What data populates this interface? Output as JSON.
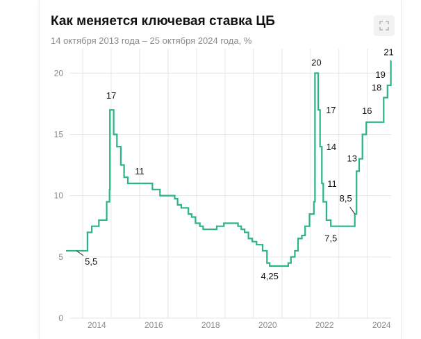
{
  "header": {
    "title": "Как меняется ключевая ставка ЦБ",
    "subtitle": "14 октября 2013 года – 25 октября 2024 года, %",
    "expand_icon": "expand-icon"
  },
  "colors": {
    "line": "#2bb584",
    "grid": "#e6e6e6",
    "text": "#111111",
    "muted": "#8a8a8a"
  },
  "chart_data": {
    "type": "line",
    "title": "Как меняется ключевая ставка ЦБ",
    "subtitle": "14 октября 2013 года – 25 октября 2024 года, %",
    "xlabel": "",
    "ylabel": "",
    "xlim": [
      "2013-06-01",
      "2024-11-01"
    ],
    "ylim": [
      0,
      22
    ],
    "yticks": [
      0,
      5,
      10,
      15,
      20
    ],
    "xticks": [
      "2014",
      "2016",
      "2018",
      "2020",
      "2022",
      "2024"
    ],
    "grid": true,
    "step": true,
    "series": [
      {
        "points": [
          [
            "2013-06-01",
            5.5
          ],
          [
            "2014-03-03",
            7.0
          ],
          [
            "2014-04-28",
            7.5
          ],
          [
            "2014-07-28",
            8.0
          ],
          [
            "2014-11-05",
            9.5
          ],
          [
            "2014-12-12",
            10.5
          ],
          [
            "2014-12-16",
            17.0
          ],
          [
            "2015-02-02",
            15.0
          ],
          [
            "2015-03-16",
            14.0
          ],
          [
            "2015-05-05",
            12.5
          ],
          [
            "2015-06-16",
            11.5
          ],
          [
            "2015-08-03",
            11.0
          ],
          [
            "2016-06-14",
            10.5
          ],
          [
            "2016-09-19",
            10.0
          ],
          [
            "2017-03-27",
            9.75
          ],
          [
            "2017-05-02",
            9.25
          ],
          [
            "2017-06-19",
            9.0
          ],
          [
            "2017-09-18",
            8.5
          ],
          [
            "2017-10-30",
            8.25
          ],
          [
            "2017-12-18",
            7.75
          ],
          [
            "2018-02-12",
            7.5
          ],
          [
            "2018-03-26",
            7.25
          ],
          [
            "2018-09-17",
            7.5
          ],
          [
            "2018-12-17",
            7.75
          ],
          [
            "2019-06-17",
            7.5
          ],
          [
            "2019-07-29",
            7.25
          ],
          [
            "2019-09-09",
            7.0
          ],
          [
            "2019-10-28",
            6.5
          ],
          [
            "2019-12-16",
            6.25
          ],
          [
            "2020-02-10",
            6.0
          ],
          [
            "2020-04-27",
            5.5
          ],
          [
            "2020-06-22",
            4.5
          ],
          [
            "2020-07-27",
            4.25
          ],
          [
            "2021-03-22",
            4.5
          ],
          [
            "2021-04-26",
            5.0
          ],
          [
            "2021-06-15",
            5.5
          ],
          [
            "2021-07-26",
            6.5
          ],
          [
            "2021-09-13",
            6.75
          ],
          [
            "2021-10-25",
            7.5
          ],
          [
            "2021-12-20",
            8.5
          ],
          [
            "2022-02-14",
            9.5
          ],
          [
            "2022-02-28",
            20.0
          ],
          [
            "2022-04-11",
            17.0
          ],
          [
            "2022-05-04",
            14.0
          ],
          [
            "2022-05-27",
            11.0
          ],
          [
            "2022-06-14",
            9.5
          ],
          [
            "2022-07-25",
            8.0
          ],
          [
            "2022-09-19",
            7.5
          ],
          [
            "2023-07-24",
            8.5
          ],
          [
            "2023-08-15",
            12.0
          ],
          [
            "2023-09-18",
            13.0
          ],
          [
            "2023-10-30",
            15.0
          ],
          [
            "2023-12-18",
            16.0
          ],
          [
            "2024-07-29",
            18.0
          ],
          [
            "2024-09-16",
            19.0
          ],
          [
            "2024-10-28",
            21.0
          ],
          [
            "2024-11-01",
            21.0
          ]
        ]
      }
    ],
    "annotations": [
      {
        "label": "5,5",
        "date": "2013-10-14",
        "value": 5.5
      },
      {
        "label": "17",
        "date": "2014-12-16",
        "value": 17.0
      },
      {
        "label": "11",
        "date": "2016-01-01",
        "value": 11.0
      },
      {
        "label": "4,25",
        "date": "2020-07-27",
        "value": 4.25
      },
      {
        "label": "20",
        "date": "2022-02-28",
        "value": 20.0
      },
      {
        "label": "17",
        "date": "2022-04-11",
        "value": 17.0
      },
      {
        "label": "14",
        "date": "2022-05-04",
        "value": 14.0
      },
      {
        "label": "11",
        "date": "2022-05-27",
        "value": 11.0
      },
      {
        "label": "7,5",
        "date": "2022-09-19",
        "value": 7.5
      },
      {
        "label": "8,5",
        "date": "2023-07-24",
        "value": 8.5
      },
      {
        "label": "13",
        "date": "2023-09-18",
        "value": 13.0
      },
      {
        "label": "16",
        "date": "2023-12-18",
        "value": 16.0
      },
      {
        "label": "18",
        "date": "2024-07-29",
        "value": 18.0
      },
      {
        "label": "19",
        "date": "2024-09-16",
        "value": 19.0
      },
      {
        "label": "21",
        "date": "2024-10-28",
        "value": 21.0
      }
    ]
  }
}
